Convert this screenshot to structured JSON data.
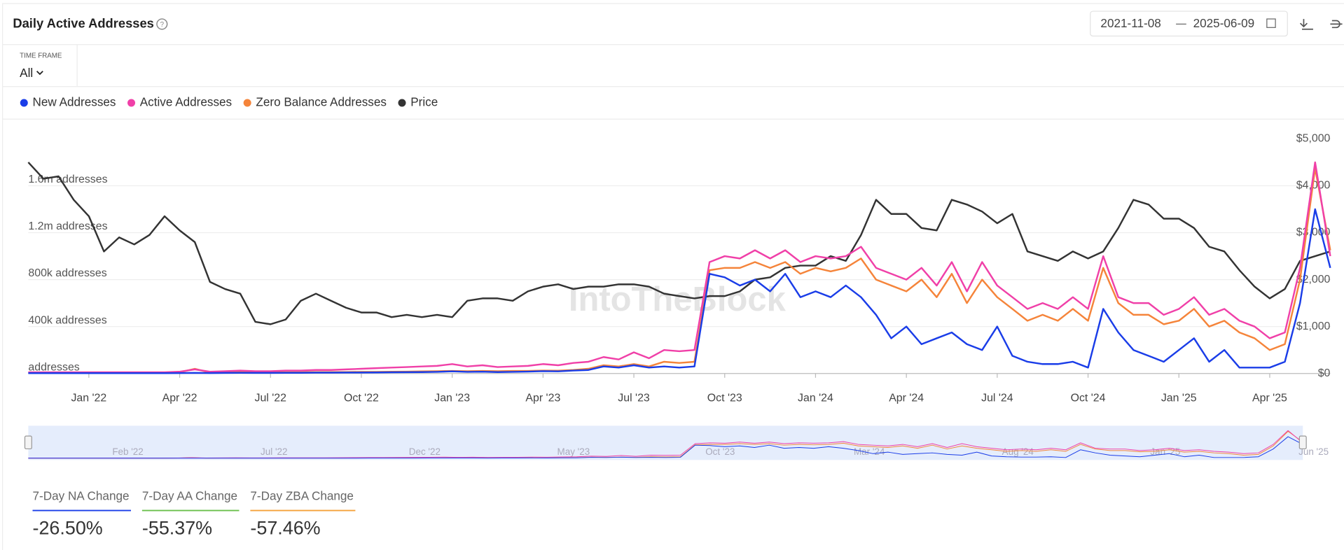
{
  "header": {
    "title": "Daily Active Addresses",
    "date_from": "2021-11-08",
    "date_to": "2025-06-09"
  },
  "time_frame": {
    "label": "TIME FRAME",
    "value": "All"
  },
  "watermark": "IntoTheBlock",
  "chart_data": {
    "type": "line",
    "categories": [
      null,
      null,
      null,
      null,
      "Jan '22",
      null,
      null,
      null,
      null,
      null,
      "Apr '22",
      null,
      null,
      null,
      null,
      null,
      "Jul '22",
      null,
      null,
      null,
      null,
      null,
      "Oct '22",
      null,
      null,
      null,
      null,
      null,
      "Jan '23",
      null,
      null,
      null,
      null,
      null,
      "Apr '23",
      null,
      null,
      null,
      null,
      null,
      "Jul '23",
      null,
      null,
      null,
      null,
      null,
      "Oct '23",
      null,
      null,
      null,
      null,
      null,
      "Jan '24",
      null,
      null,
      null,
      null,
      null,
      "Apr '24",
      null,
      null,
      null,
      null,
      null,
      "Jul '24",
      null,
      null,
      null,
      null,
      null,
      "Oct '24",
      null,
      null,
      null,
      null,
      null,
      "Jan '25",
      null,
      null,
      null,
      null,
      null,
      "Apr '25",
      null,
      null,
      null,
      null
    ],
    "series": [
      {
        "name": "New Addresses",
        "color": "#1a3de8",
        "values": [
          3000,
          3000,
          3000,
          3000,
          3000,
          3000,
          3000,
          3000,
          3000,
          3000,
          4000,
          5000,
          4000,
          5000,
          6000,
          5000,
          5000,
          6000,
          6000,
          7000,
          7000,
          8000,
          8000,
          9000,
          10000,
          11000,
          12000,
          14000,
          18000,
          14000,
          15000,
          12000,
          14000,
          16000,
          20000,
          18000,
          25000,
          30000,
          60000,
          50000,
          70000,
          50000,
          60000,
          50000,
          60000,
          850000,
          820000,
          750000,
          800000,
          700000,
          850000,
          650000,
          700000,
          650000,
          750000,
          650000,
          500000,
          300000,
          400000,
          250000,
          300000,
          350000,
          250000,
          200000,
          400000,
          150000,
          100000,
          80000,
          80000,
          100000,
          50000,
          550000,
          350000,
          200000,
          150000,
          100000,
          200000,
          300000,
          100000,
          200000,
          50000,
          50000,
          50000,
          100000,
          600000,
          1400000,
          900000
        ]
      },
      {
        "name": "Active Addresses",
        "color": "#f040a8",
        "values": [
          10000,
          10000,
          10000,
          10000,
          10000,
          10000,
          10000,
          10000,
          10000,
          10000,
          15000,
          35000,
          15000,
          20000,
          25000,
          20000,
          20000,
          25000,
          25000,
          30000,
          30000,
          35000,
          40000,
          45000,
          50000,
          55000,
          60000,
          65000,
          80000,
          60000,
          70000,
          55000,
          60000,
          65000,
          80000,
          70000,
          90000,
          100000,
          140000,
          120000,
          180000,
          130000,
          200000,
          190000,
          200000,
          950000,
          1000000,
          980000,
          1050000,
          980000,
          1050000,
          950000,
          1000000,
          980000,
          1000000,
          1080000,
          900000,
          850000,
          800000,
          900000,
          750000,
          950000,
          700000,
          950000,
          750000,
          650000,
          550000,
          600000,
          550000,
          650000,
          550000,
          1000000,
          650000,
          600000,
          600000,
          500000,
          550000,
          650000,
          500000,
          550000,
          450000,
          400000,
          300000,
          350000,
          900000,
          1800000,
          1000000
        ]
      },
      {
        "name": "Zero Balance Addresses",
        "color": "#f5843a",
        "values": [
          5000,
          5000,
          5000,
          5000,
          5000,
          5000,
          5000,
          5000,
          5000,
          5000,
          10000,
          40000,
          8000,
          10000,
          12000,
          10000,
          10000,
          10000,
          10000,
          12000,
          12000,
          12000,
          14000,
          14000,
          15000,
          16000,
          18000,
          20000,
          22000,
          20000,
          22000,
          20000,
          22000,
          22000,
          25000,
          24000,
          30000,
          40000,
          70000,
          60000,
          80000,
          60000,
          100000,
          90000,
          100000,
          880000,
          900000,
          900000,
          950000,
          900000,
          950000,
          850000,
          900000,
          870000,
          900000,
          980000,
          800000,
          750000,
          700000,
          800000,
          650000,
          850000,
          600000,
          800000,
          650000,
          550000,
          450000,
          500000,
          450000,
          550000,
          450000,
          900000,
          600000,
          500000,
          500000,
          420000,
          450000,
          550000,
          400000,
          450000,
          350000,
          300000,
          200000,
          250000,
          800000,
          1750000,
          1050000
        ]
      },
      {
        "name": "Price",
        "color": "#333333",
        "axis": "y2",
        "values": [
          4500,
          4150,
          4200,
          3700,
          3350,
          2600,
          2900,
          2750,
          2950,
          3350,
          3050,
          2800,
          1950,
          1800,
          1700,
          1100,
          1050,
          1150,
          1550,
          1700,
          1550,
          1400,
          1300,
          1300,
          1200,
          1250,
          1200,
          1250,
          1200,
          1550,
          1600,
          1600,
          1550,
          1750,
          1850,
          1900,
          1800,
          1850,
          1850,
          1900,
          1900,
          1850,
          1700,
          1650,
          1600,
          1650,
          1650,
          1750,
          2000,
          2050,
          2250,
          2300,
          2300,
          2500,
          2400,
          2950,
          3700,
          3400,
          3400,
          3100,
          3050,
          3700,
          3600,
          3450,
          3200,
          3400,
          2600,
          2500,
          2400,
          2600,
          2450,
          2600,
          3100,
          3700,
          3600,
          3300,
          3300,
          3100,
          2700,
          2600,
          2200,
          1850,
          1600,
          1800,
          2400,
          2500,
          2600
        ]
      }
    ],
    "ylim": [
      0,
      2000000
    ],
    "yticks": [
      {
        "value": 0,
        "label": "addresses"
      },
      {
        "value": 400000,
        "label": "400k addresses"
      },
      {
        "value": 800000,
        "label": "800k addresses"
      },
      {
        "value": 1200000,
        "label": "1.2m addresses"
      },
      {
        "value": 1600000,
        "label": "1.6m addresses"
      }
    ],
    "y2lim": [
      0,
      5000
    ],
    "y2ticks": [
      {
        "value": 0,
        "label": "$0"
      },
      {
        "value": 1000,
        "label": "$1,000"
      },
      {
        "value": 2000,
        "label": "$2,000"
      },
      {
        "value": 3000,
        "label": "$3,000"
      },
      {
        "value": 4000,
        "label": "$4,000"
      },
      {
        "value": 5000,
        "label": "$5,000"
      }
    ],
    "grid": true
  },
  "navigator": {
    "labels": [
      "Feb '22",
      "Jul '22",
      "Dec '22",
      "May '23",
      "Oct '23",
      "Mar '24",
      "Aug '24",
      "Jan '25",
      "Jun '25"
    ]
  },
  "stats": [
    {
      "label": "7-Day NA Change",
      "value": "-26.50%",
      "color": "#1a3de8"
    },
    {
      "label": "7-Day AA Change",
      "value": "-55.37%",
      "color": "#6abf4b"
    },
    {
      "label": "7-Day ZBA Change",
      "value": "-57.46%",
      "color": "#f5a23a"
    }
  ]
}
